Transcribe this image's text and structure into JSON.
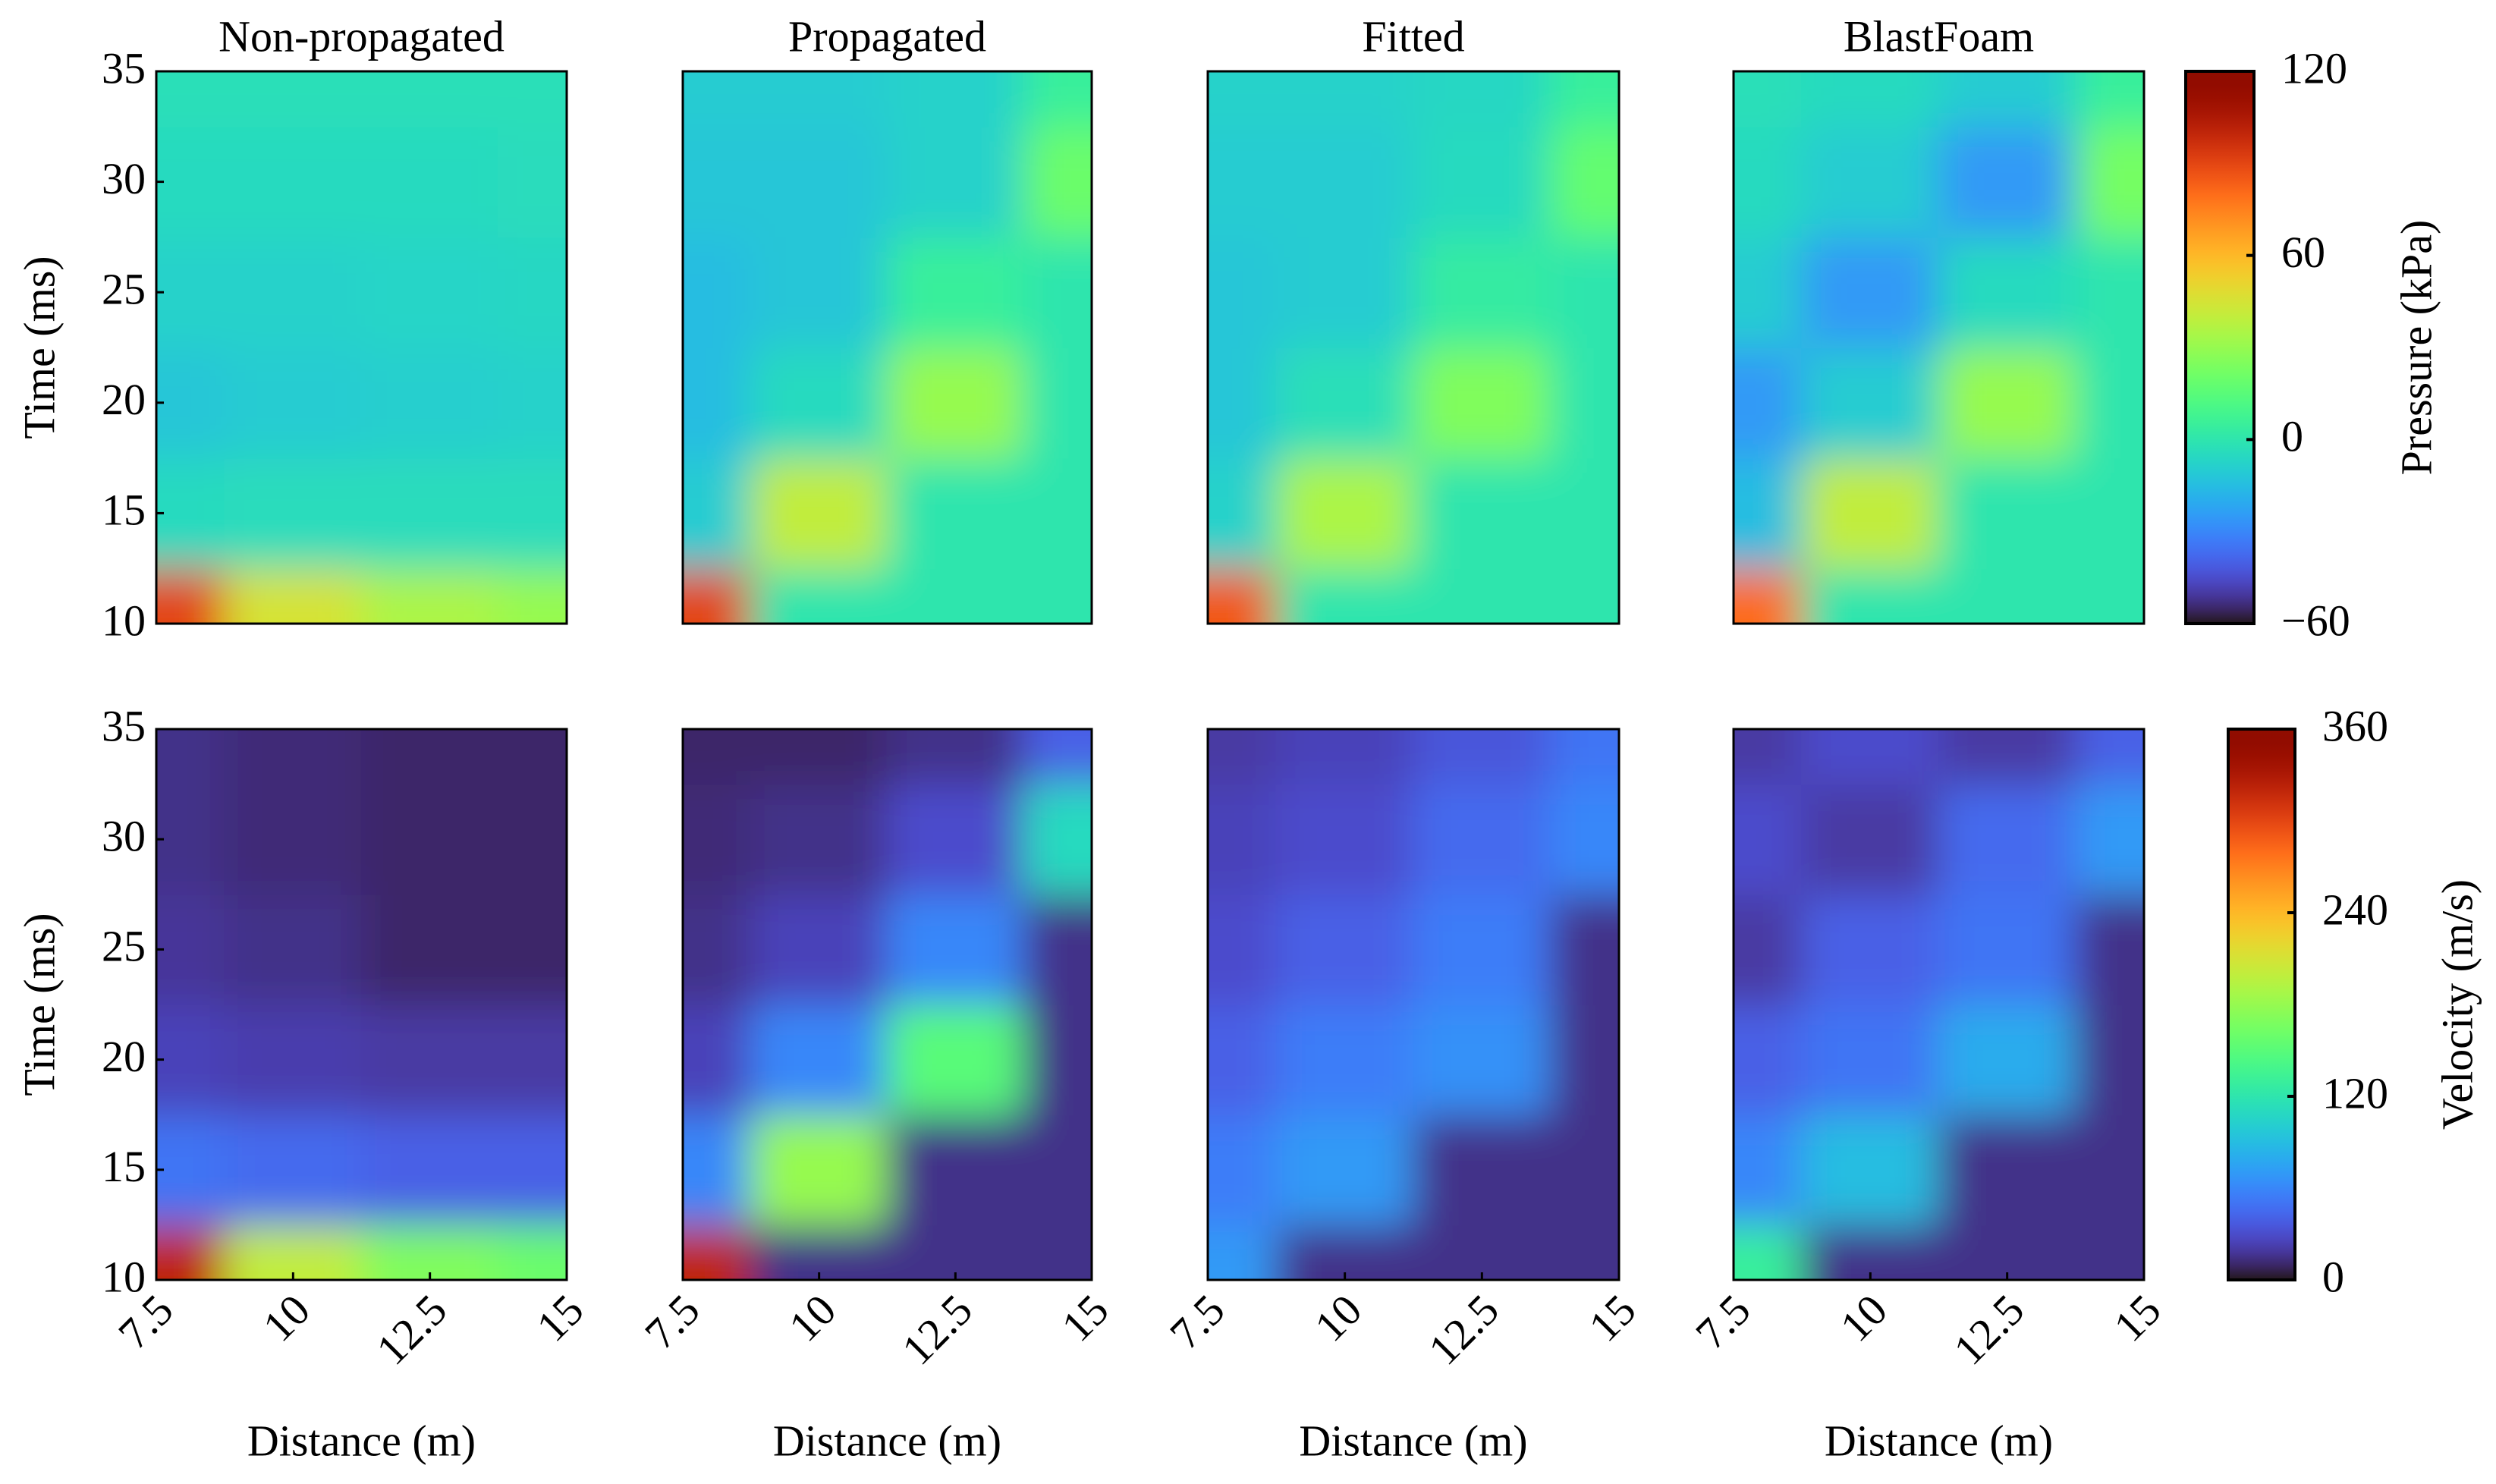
{
  "chart_data": [
    {
      "type": "heatmap",
      "title": "Non-propagated",
      "ylabel": "Time (ms)",
      "colormap": "turbo",
      "zlim": [
        -60,
        120
      ],
      "xlim": [
        7.5,
        15
      ],
      "ylim": [
        10,
        35
      ],
      "yticks": [
        10,
        15,
        20,
        25,
        30,
        35
      ],
      "x": [
        7.5,
        10,
        12.5,
        15
      ],
      "y": [
        10,
        15,
        20,
        25,
        30,
        35
      ],
      "z": [
        [
          90,
          45,
          35,
          30
        ],
        [
          -5,
          -4,
          -4,
          -4
        ],
        [
          -12,
          -10,
          -9,
          -8
        ],
        [
          -8,
          -8,
          -7,
          -6
        ],
        [
          -5,
          -5,
          -5,
          -4
        ],
        [
          -3,
          -3,
          -3,
          -3
        ]
      ]
    },
    {
      "type": "heatmap",
      "title": "Propagated",
      "colormap": "turbo",
      "zlim": [
        -60,
        120
      ],
      "xlim": [
        7.5,
        15
      ],
      "ylim": [
        10,
        35
      ],
      "x": [
        7.5,
        10,
        12.5,
        15
      ],
      "y": [
        10,
        15,
        20,
        25,
        30,
        35
      ],
      "z": [
        [
          90,
          0,
          0,
          0
        ],
        [
          -10,
          40,
          0,
          0
        ],
        [
          -15,
          -5,
          30,
          0
        ],
        [
          -15,
          -12,
          5,
          0
        ],
        [
          -12,
          -12,
          -8,
          20
        ],
        [
          -10,
          -10,
          -8,
          5
        ]
      ]
    },
    {
      "type": "heatmap",
      "title": "Fitted",
      "colormap": "turbo",
      "zlim": [
        -60,
        120
      ],
      "xlim": [
        7.5,
        15
      ],
      "ylim": [
        10,
        35
      ],
      "x": [
        7.5,
        10,
        12.5,
        15
      ],
      "y": [
        10,
        15,
        20,
        25,
        30,
        35
      ],
      "z": [
        [
          85,
          0,
          0,
          0
        ],
        [
          -8,
          35,
          0,
          0
        ],
        [
          -12,
          -3,
          25,
          0
        ],
        [
          -12,
          -10,
          3,
          0
        ],
        [
          -10,
          -10,
          -5,
          18
        ],
        [
          -8,
          -8,
          -6,
          5
        ]
      ]
    },
    {
      "type": "heatmap",
      "title": "BlastFoam",
      "colormap": "turbo",
      "zlim": [
        -60,
        120
      ],
      "xlim": [
        7.5,
        15
      ],
      "ylim": [
        10,
        35
      ],
      "x": [
        7.5,
        10,
        12.5,
        15
      ],
      "y": [
        10,
        15,
        20,
        25,
        30,
        35
      ],
      "z": [
        [
          80,
          0,
          0,
          0
        ],
        [
          -15,
          40,
          0,
          0
        ],
        [
          -25,
          -10,
          30,
          0
        ],
        [
          -10,
          -25,
          -5,
          0
        ],
        [
          -5,
          -10,
          -25,
          22
        ],
        [
          -3,
          -5,
          -10,
          5
        ]
      ],
      "colorbar": {
        "label": "Pressure (kPa)",
        "ticks": [
          {
            "value": -60,
            "label": "−60"
          },
          0,
          60,
          120
        ]
      }
    },
    {
      "type": "heatmap",
      "ylabel": "Time (ms)",
      "xlabel": "Distance (m)",
      "colormap": "turbo",
      "zlim": [
        0,
        360
      ],
      "xlim": [
        7.5,
        15
      ],
      "ylim": [
        10,
        35
      ],
      "xticks": [
        7.5,
        10,
        12.5,
        15
      ],
      "yticks": [
        10,
        15,
        20,
        25,
        30,
        35
      ],
      "x": [
        7.5,
        10,
        12.5,
        15
      ],
      "y": [
        10,
        15,
        20,
        25,
        30,
        35
      ],
      "z": [
        [
          320,
          200,
          170,
          160
        ],
        [
          50,
          45,
          40,
          40
        ],
        [
          25,
          22,
          20,
          20
        ],
        [
          18,
          15,
          10,
          10
        ],
        [
          15,
          12,
          10,
          10
        ],
        [
          15,
          12,
          10,
          10
        ]
      ]
    },
    {
      "type": "heatmap",
      "xlabel": "Distance (m)",
      "colormap": "turbo",
      "zlim": [
        0,
        360
      ],
      "xlim": [
        7.5,
        15
      ],
      "ylim": [
        10,
        35
      ],
      "xticks": [
        7.5,
        10,
        12.5,
        15
      ],
      "x": [
        7.5,
        10,
        12.5,
        15
      ],
      "y": [
        10,
        15,
        20,
        25,
        30,
        35
      ],
      "z": [
        [
          320,
          15,
          15,
          15
        ],
        [
          60,
          180,
          15,
          15
        ],
        [
          25,
          60,
          150,
          15
        ],
        [
          15,
          25,
          60,
          15
        ],
        [
          12,
          15,
          30,
          110
        ],
        [
          10,
          10,
          15,
          40
        ]
      ]
    },
    {
      "type": "heatmap",
      "xlabel": "Distance (m)",
      "colormap": "turbo",
      "zlim": [
        0,
        360
      ],
      "xlim": [
        7.5,
        15
      ],
      "ylim": [
        10,
        35
      ],
      "xticks": [
        7.5,
        10,
        12.5,
        15
      ],
      "x": [
        7.5,
        10,
        12.5,
        15
      ],
      "y": [
        10,
        15,
        20,
        25,
        30,
        35
      ],
      "z": [
        [
          70,
          15,
          15,
          15
        ],
        [
          55,
          70,
          15,
          15
        ],
        [
          40,
          55,
          65,
          15
        ],
        [
          30,
          40,
          55,
          15
        ],
        [
          25,
          30,
          45,
          60
        ],
        [
          20,
          25,
          35,
          50
        ]
      ]
    },
    {
      "type": "heatmap",
      "xlabel": "Distance (m)",
      "colormap": "turbo",
      "zlim": [
        0,
        360
      ],
      "xlim": [
        7.5,
        15
      ],
      "ylim": [
        10,
        35
      ],
      "xticks": [
        7.5,
        10,
        12.5,
        15
      ],
      "x": [
        7.5,
        10,
        12.5,
        15
      ],
      "y": [
        10,
        15,
        20,
        25,
        30,
        35
      ],
      "z": [
        [
          130,
          15,
          15,
          15
        ],
        [
          60,
          90,
          15,
          15
        ],
        [
          40,
          50,
          80,
          15
        ],
        [
          20,
          40,
          50,
          15
        ],
        [
          30,
          20,
          45,
          70
        ],
        [
          20,
          30,
          20,
          40
        ]
      ],
      "colorbar": {
        "label": "Velocity (m/s)",
        "ticks": [
          0,
          120,
          240,
          360
        ]
      }
    }
  ]
}
